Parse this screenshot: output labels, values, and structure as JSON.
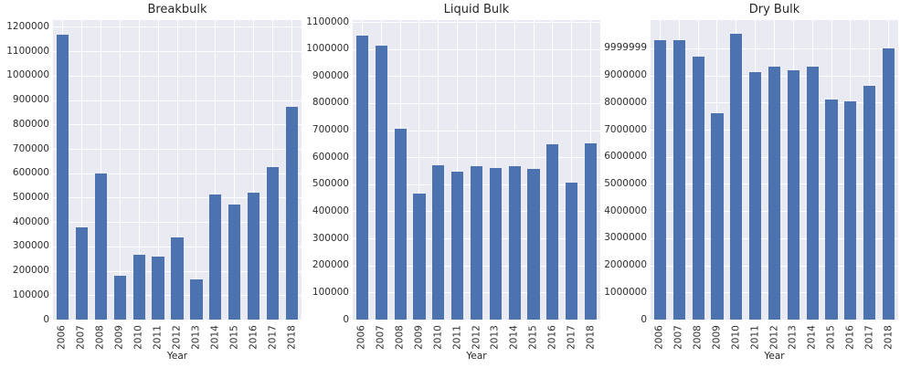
{
  "figure": {
    "background": "#ffffff"
  },
  "style": {
    "bar_color": "#4C72B0",
    "plot_bg": "#EAEAF2",
    "grid_color": "#ffffff",
    "text_color": "#262626"
  },
  "chart_data": [
    {
      "type": "bar",
      "title": "Breakbulk",
      "xlabel": "Year",
      "categories": [
        "2006",
        "2007",
        "2008",
        "2009",
        "2010",
        "2011",
        "2012",
        "2013",
        "2014",
        "2015",
        "2016",
        "2017",
        "2018"
      ],
      "values": [
        1168000,
        377000,
        599000,
        178000,
        267000,
        258000,
        337000,
        166000,
        514000,
        471000,
        519000,
        624000,
        872000
      ],
      "ylim": [
        0,
        1228000
      ],
      "ytick_values": [
        0,
        100000,
        200000,
        300000,
        400000,
        500000,
        600000,
        700000,
        800000,
        900000,
        1000000,
        1100000,
        1200000
      ],
      "ytick_labels": [
        "0",
        "100000",
        "200000",
        "300000",
        "400000",
        "500000",
        "600000",
        "700000",
        "800000",
        "900000",
        "1000000",
        "1100000",
        "1200000"
      ],
      "grid": true,
      "legend": "none"
    },
    {
      "type": "bar",
      "title": "Liquid Bulk",
      "xlabel": "Year",
      "categories": [
        "2006",
        "2007",
        "2008",
        "2009",
        "2010",
        "2011",
        "2012",
        "2013",
        "2014",
        "2015",
        "2016",
        "2017",
        "2018"
      ],
      "values": [
        1050000,
        1014000,
        704000,
        467000,
        570000,
        548000,
        566000,
        561000,
        566000,
        557000,
        648000,
        505000,
        652000
      ],
      "ylim": [
        0,
        1107000
      ],
      "ytick_values": [
        0,
        100000,
        200000,
        300000,
        400000,
        500000,
        600000,
        700000,
        800000,
        900000,
        1000000,
        1100000
      ],
      "ytick_labels": [
        "0",
        "100000",
        "200000",
        "300000",
        "400000",
        "500000",
        "600000",
        "700000",
        "800000",
        "900000",
        "1000000",
        "1100000"
      ],
      "grid": true,
      "legend": "none"
    },
    {
      "type": "bar",
      "title": "Dry Bulk",
      "xlabel": "Year",
      "categories": [
        "2006",
        "2007",
        "2008",
        "2009",
        "2010",
        "2011",
        "2012",
        "2013",
        "2014",
        "2015",
        "2016",
        "2017",
        "2018"
      ],
      "values": [
        10290000,
        10310000,
        9710000,
        7610000,
        10520000,
        9120000,
        9310000,
        9180000,
        9330000,
        8110000,
        8030000,
        8610000,
        10010000
      ],
      "ylim": [
        0,
        11040000
      ],
      "ytick_values": [
        0,
        1000000,
        2000000,
        3000000,
        4000000,
        5000000,
        6000000,
        7000000,
        8000000,
        9000000,
        9999999
      ],
      "ytick_labels": [
        "0",
        "1000000",
        "2000000",
        "3000000",
        "4000000",
        "5000000",
        "6000000",
        "7000000",
        "8000000",
        "9000000",
        "9999999"
      ],
      "grid": true,
      "legend": "none"
    }
  ]
}
